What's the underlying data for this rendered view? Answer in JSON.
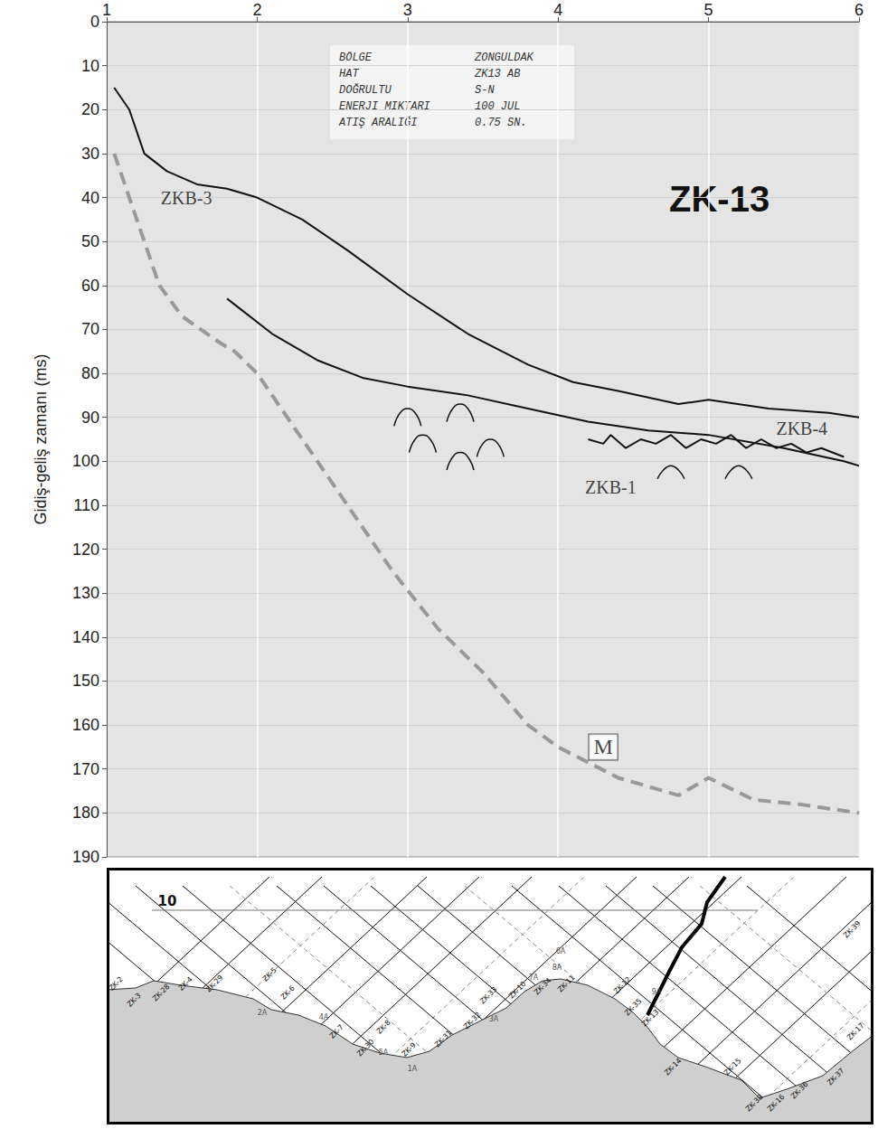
{
  "chart_data": {
    "type": "line",
    "title": "ZK-13",
    "y_label": "Gidiş-geliş zamanı (ms)",
    "xlim": [
      1,
      6
    ],
    "xticks": [
      1,
      2,
      3,
      4,
      5,
      6
    ],
    "ylim": [
      0,
      190
    ],
    "yticks": [
      0,
      10,
      20,
      30,
      40,
      50,
      60,
      70,
      80,
      90,
      100,
      110,
      120,
      130,
      140,
      150,
      160,
      170,
      180,
      190
    ],
    "grid": true,
    "series": [
      {
        "name": "ZKB-3",
        "color": "#111111",
        "line_style": "solid",
        "label": [
          1.53,
          40
        ],
        "values": [
          [
            1.05,
            15
          ],
          [
            1.15,
            20
          ],
          [
            1.25,
            30
          ],
          [
            1.4,
            34
          ],
          [
            1.6,
            37
          ],
          [
            1.8,
            38
          ],
          [
            2.0,
            40
          ],
          [
            2.3,
            45
          ],
          [
            2.6,
            52
          ],
          [
            3.0,
            62
          ],
          [
            3.4,
            71
          ],
          [
            3.8,
            78
          ],
          [
            4.1,
            82
          ],
          [
            4.4,
            84
          ],
          [
            4.8,
            87
          ],
          [
            5.0,
            86
          ],
          [
            5.4,
            88
          ],
          [
            5.8,
            89
          ],
          [
            6.0,
            90
          ]
        ]
      },
      {
        "name": "ZKB-4",
        "color": "#111111",
        "line_style": "solid",
        "label": [
          5.62,
          92.5
        ],
        "values": [
          [
            1.8,
            63
          ],
          [
            2.1,
            71
          ],
          [
            2.4,
            77
          ],
          [
            2.7,
            81
          ],
          [
            3.0,
            83
          ],
          [
            3.4,
            85
          ],
          [
            3.8,
            88
          ],
          [
            4.2,
            91
          ],
          [
            4.6,
            93
          ],
          [
            5.0,
            94
          ],
          [
            5.5,
            97
          ],
          [
            5.9,
            100
          ],
          [
            6.0,
            101
          ]
        ]
      },
      {
        "name": "ZKB-1",
        "color": "#111111",
        "line_style": "solid",
        "label": [
          4.35,
          106
        ],
        "values": [
          [
            4.2,
            95
          ],
          [
            4.3,
            96
          ],
          [
            4.35,
            94
          ],
          [
            4.45,
            97
          ],
          [
            4.55,
            95
          ],
          [
            4.65,
            96
          ],
          [
            4.75,
            94
          ],
          [
            4.85,
            97
          ],
          [
            4.95,
            95
          ],
          [
            5.05,
            96
          ],
          [
            5.15,
            94
          ],
          [
            5.25,
            97
          ],
          [
            5.35,
            95
          ],
          [
            5.45,
            97
          ],
          [
            5.55,
            96
          ],
          [
            5.65,
            98
          ],
          [
            5.75,
            97
          ],
          [
            5.9,
            99
          ]
        ]
      },
      {
        "name": "M",
        "color": "#999999",
        "line_style": "dashed",
        "label": [
          4.3,
          165
        ],
        "values": [
          [
            1.05,
            30
          ],
          [
            1.15,
            40
          ],
          [
            1.25,
            50
          ],
          [
            1.35,
            60
          ],
          [
            1.5,
            67
          ],
          [
            1.75,
            73
          ],
          [
            1.85,
            75
          ],
          [
            2.0,
            80
          ],
          [
            2.3,
            95
          ],
          [
            2.6,
            110
          ],
          [
            2.9,
            125
          ],
          [
            3.2,
            138
          ],
          [
            3.5,
            148
          ],
          [
            3.8,
            160
          ],
          [
            4.0,
            165
          ],
          [
            4.4,
            172
          ],
          [
            4.8,
            176
          ],
          [
            5.0,
            172
          ],
          [
            5.3,
            177
          ],
          [
            5.6,
            178
          ],
          [
            6.0,
            180
          ]
        ]
      }
    ],
    "diffractions": [
      [
        [
          2.91,
          92
        ],
        [
          2.95,
          89
        ],
        [
          3.0,
          88
        ],
        [
          3.05,
          89
        ],
        [
          3.09,
          92
        ]
      ],
      [
        [
          3.26,
          91
        ],
        [
          3.3,
          88
        ],
        [
          3.35,
          87
        ],
        [
          3.4,
          88
        ],
        [
          3.44,
          91
        ]
      ],
      [
        [
          3.01,
          98
        ],
        [
          3.05,
          95
        ],
        [
          3.1,
          94
        ],
        [
          3.15,
          95
        ],
        [
          3.19,
          98
        ]
      ],
      [
        [
          3.46,
          99
        ],
        [
          3.5,
          96
        ],
        [
          3.55,
          95
        ],
        [
          3.6,
          96
        ],
        [
          3.64,
          99
        ]
      ],
      [
        [
          3.26,
          102
        ],
        [
          3.3,
          99
        ],
        [
          3.35,
          98
        ],
        [
          3.4,
          99
        ],
        [
          3.44,
          102
        ]
      ],
      [
        [
          4.66,
          104
        ],
        [
          4.7,
          102
        ],
        [
          4.75,
          101
        ],
        [
          4.8,
          102
        ],
        [
          4.84,
          104
        ]
      ],
      [
        [
          5.11,
          104
        ],
        [
          5.15,
          102
        ],
        [
          5.2,
          101
        ],
        [
          5.25,
          102
        ],
        [
          5.29,
          104
        ]
      ]
    ],
    "info_box": [
      [
        "BÖLGE",
        "ZONGULDAK"
      ],
      [
        "HAT",
        "ZK13 AB"
      ],
      [
        "DOĞRULTU",
        "S-N"
      ],
      [
        "ENERJI MIKTARI",
        "100 JUL"
      ],
      [
        "ATIŞ ARALIĞI",
        "0.75 SN."
      ]
    ]
  },
  "inset_map": {
    "labels": [
      "10",
      "ZK-2",
      "ZK-3",
      "ZK-28",
      "ZK-4",
      "ZK-29",
      "ZK-5",
      "ZK-6",
      "2A",
      "4A",
      "ZK-7",
      "ZK-8",
      "5A",
      "ZK-30",
      "ZK-9",
      "1A",
      "ZK-31",
      "ZK-32",
      "3A",
      "ZK-33",
      "ZK-10",
      "7A",
      "ZK-34",
      "ZK-11",
      "6A",
      "8A",
      "ZK-12",
      "ZK-35",
      "ZK-13",
      "9A",
      "ZK-14",
      "ZK-15",
      "ZK-38",
      "ZK-16",
      "ZK-36",
      "ZK-37",
      "ZK-17",
      "ZK-39"
    ]
  }
}
